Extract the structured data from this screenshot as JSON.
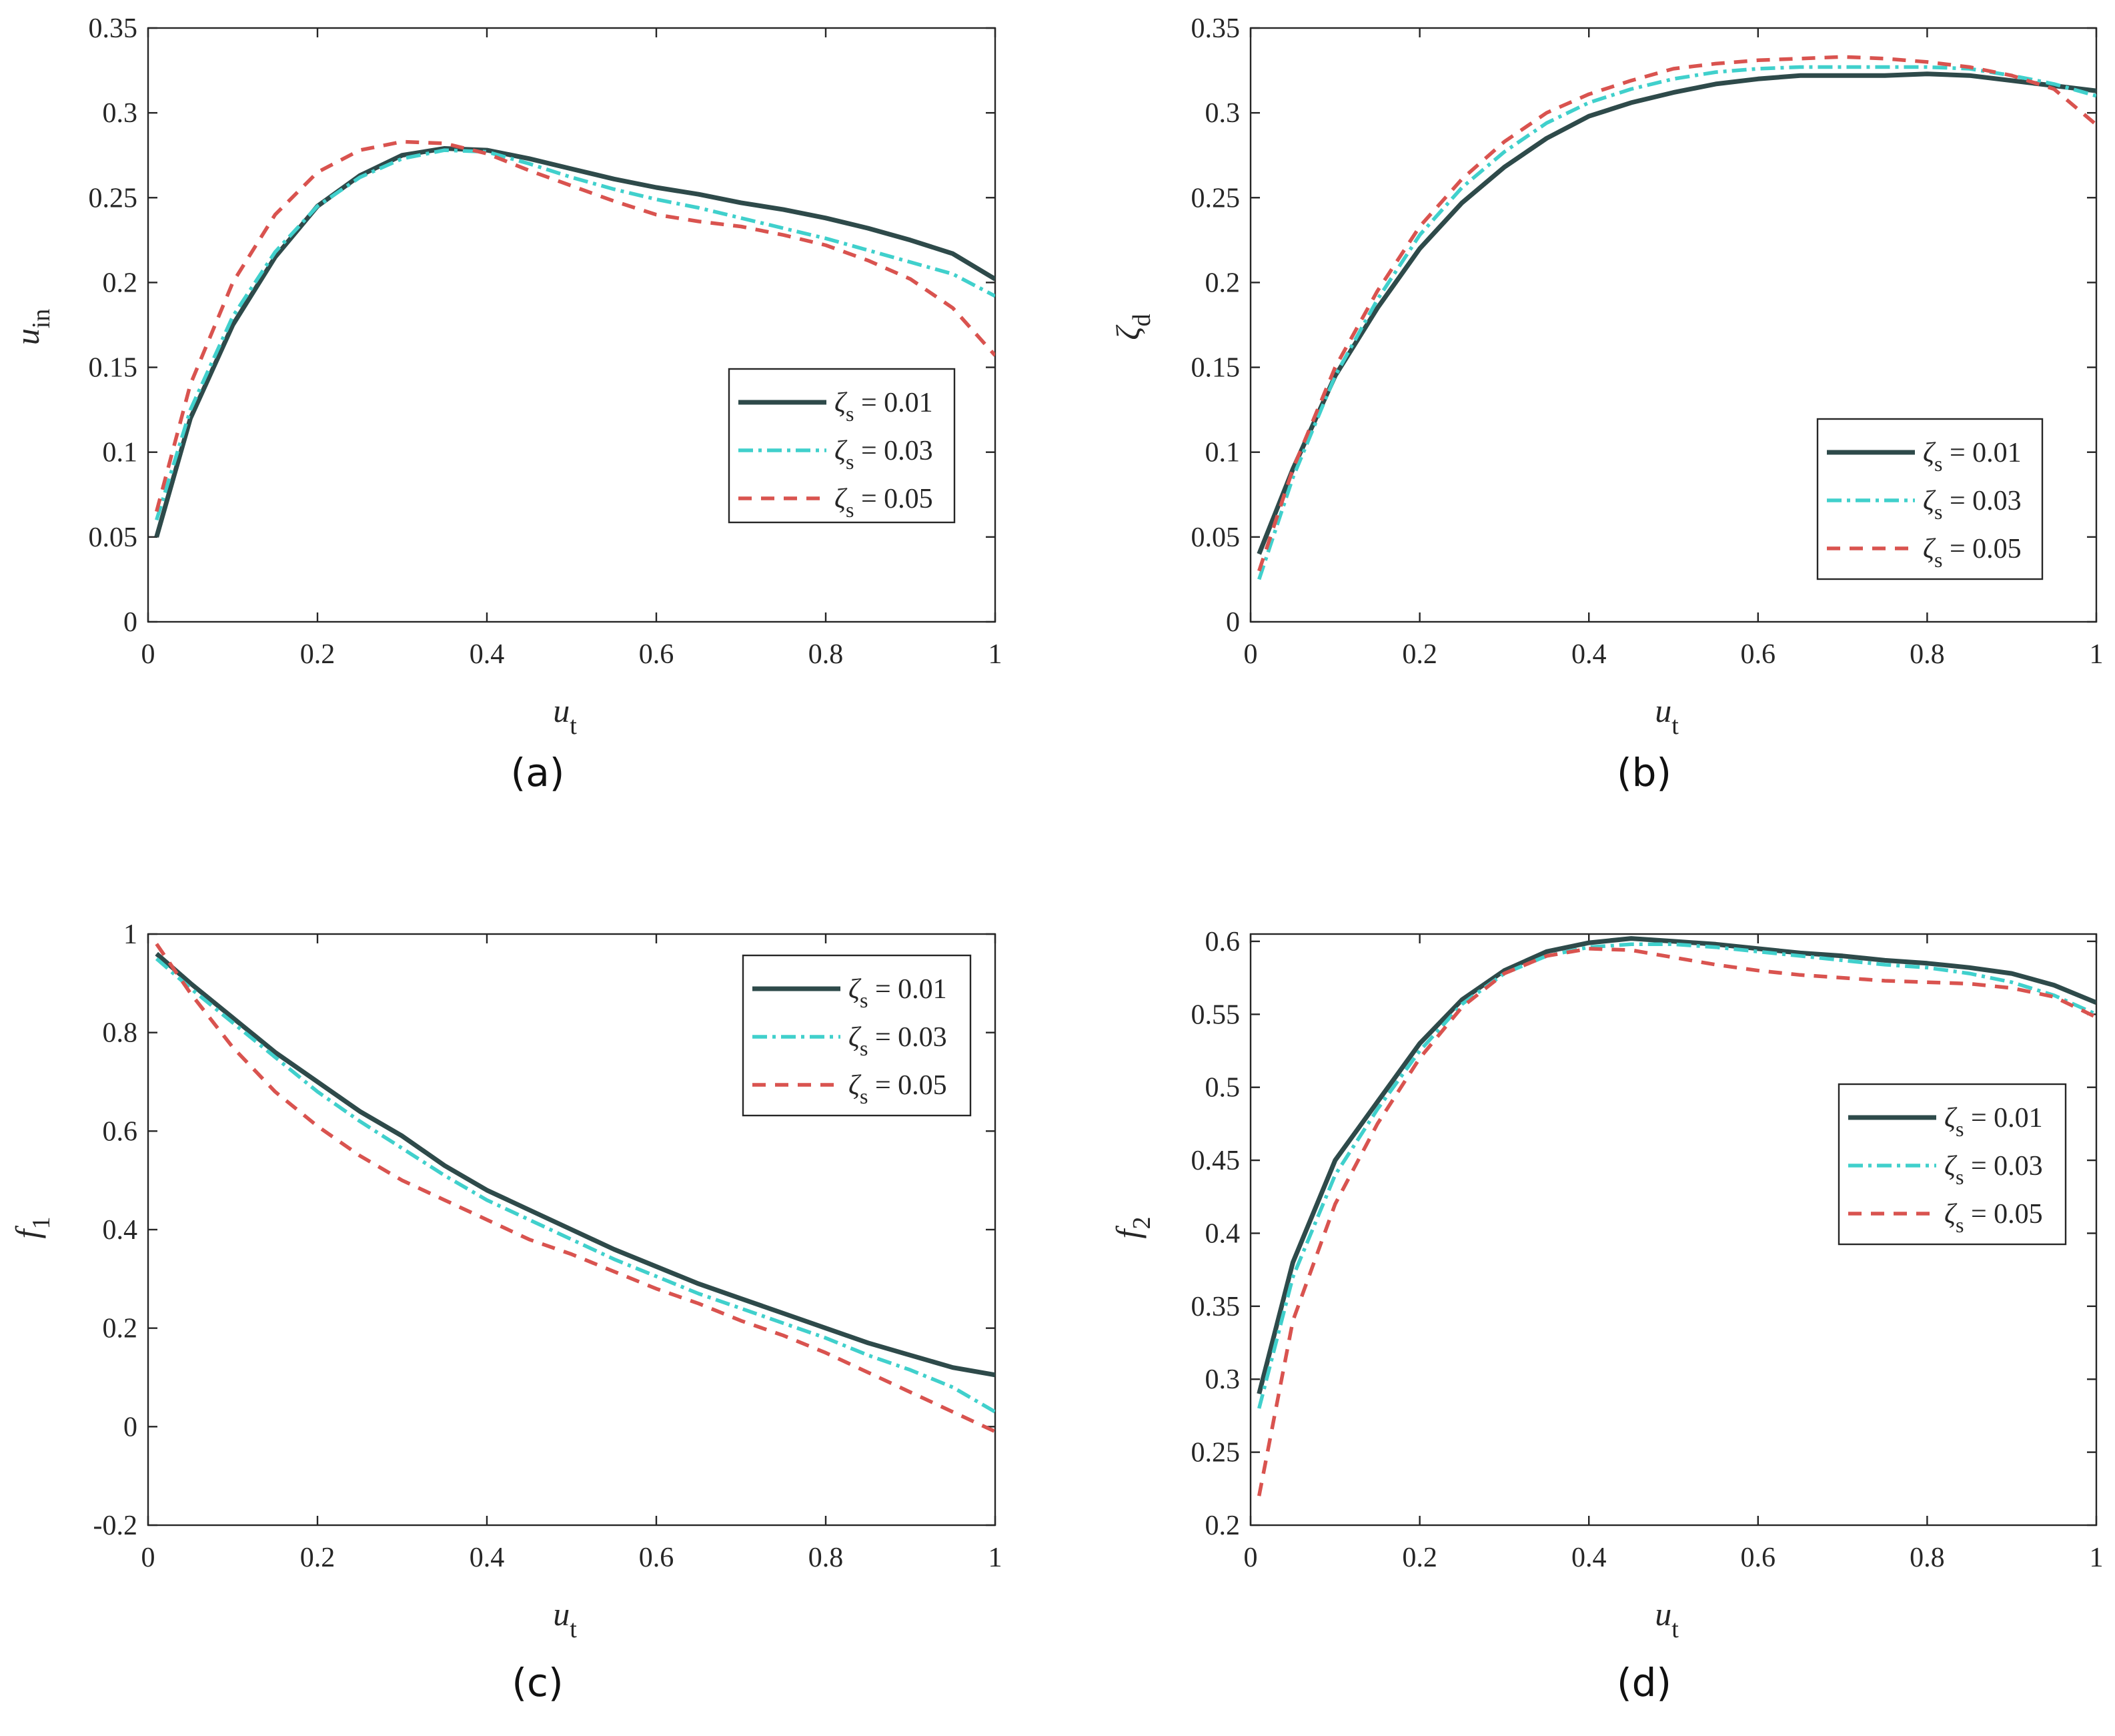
{
  "chart_data": [
    {
      "type": "line",
      "panel_label": "(a)",
      "xlabel": {
        "base": "u",
        "sub": "t"
      },
      "ylabel": {
        "base": "u",
        "sub": "in",
        "sub_italic": true
      },
      "xlim": [
        0,
        1
      ],
      "ylim": [
        0,
        0.35
      ],
      "xticks": [
        "0",
        "0.2",
        "0.4",
        "0.6",
        "0.8",
        "1"
      ],
      "yticks": [
        "0",
        "0.05",
        "0.1",
        "0.15",
        "0.2",
        "0.25",
        "0.3",
        "0.35"
      ],
      "legend_position": "right-middle",
      "legend": [
        {
          "symbol": "ζ",
          "sub": "s",
          "text": " = 0.01"
        },
        {
          "symbol": "ζ",
          "sub": "s",
          "text": " = 0.03"
        },
        {
          "symbol": "ζ",
          "sub": "s",
          "text": " = 0.05"
        }
      ],
      "series": [
        {
          "name": "ζs = 0.01",
          "x": [
            0.01,
            0.05,
            0.1,
            0.15,
            0.2,
            0.25,
            0.3,
            0.35,
            0.4,
            0.45,
            0.5,
            0.55,
            0.6,
            0.65,
            0.7,
            0.75,
            0.8,
            0.85,
            0.9,
            0.95,
            1.0
          ],
          "y": [
            0.05,
            0.12,
            0.175,
            0.215,
            0.245,
            0.263,
            0.275,
            0.279,
            0.278,
            0.273,
            0.267,
            0.261,
            0.256,
            0.252,
            0.247,
            0.243,
            0.238,
            0.232,
            0.225,
            0.217,
            0.202
          ]
        },
        {
          "name": "ζs = 0.03",
          "x": [
            0.01,
            0.05,
            0.1,
            0.15,
            0.2,
            0.25,
            0.3,
            0.35,
            0.4,
            0.45,
            0.5,
            0.55,
            0.6,
            0.65,
            0.7,
            0.75,
            0.8,
            0.85,
            0.9,
            0.95,
            1.0
          ],
          "y": [
            0.06,
            0.125,
            0.18,
            0.218,
            0.245,
            0.262,
            0.273,
            0.278,
            0.277,
            0.27,
            0.262,
            0.255,
            0.249,
            0.244,
            0.238,
            0.232,
            0.226,
            0.219,
            0.212,
            0.205,
            0.192
          ]
        },
        {
          "name": "ζs = 0.05",
          "x": [
            0.01,
            0.05,
            0.1,
            0.15,
            0.2,
            0.25,
            0.3,
            0.35,
            0.4,
            0.45,
            0.5,
            0.55,
            0.6,
            0.65,
            0.7,
            0.75,
            0.8,
            0.85,
            0.9,
            0.95,
            1.0
          ],
          "y": [
            0.065,
            0.14,
            0.2,
            0.24,
            0.265,
            0.278,
            0.283,
            0.282,
            0.276,
            0.266,
            0.257,
            0.248,
            0.24,
            0.236,
            0.233,
            0.228,
            0.222,
            0.213,
            0.202,
            0.185,
            0.157
          ]
        }
      ]
    },
    {
      "type": "line",
      "panel_label": "(b)",
      "xlabel": {
        "base": "u",
        "sub": "t"
      },
      "ylabel": {
        "base": "ζ",
        "sub": "d",
        "sub_italic": false
      },
      "xlim": [
        0,
        1
      ],
      "ylim": [
        0,
        0.35
      ],
      "xticks": [
        "0",
        "0.2",
        "0.4",
        "0.6",
        "0.8",
        "1"
      ],
      "yticks": [
        "0",
        "0.05",
        "0.1",
        "0.15",
        "0.2",
        "0.25",
        "0.3",
        "0.35"
      ],
      "legend_position": "bottom-right",
      "legend": [
        {
          "symbol": "ζ",
          "sub": "s",
          "text": " = 0.01"
        },
        {
          "symbol": "ζ",
          "sub": "s",
          "text": " = 0.03"
        },
        {
          "symbol": "ζ",
          "sub": "s",
          "text": " = 0.05"
        }
      ],
      "series": [
        {
          "name": "ζs = 0.01",
          "x": [
            0.01,
            0.05,
            0.1,
            0.15,
            0.2,
            0.25,
            0.3,
            0.35,
            0.4,
            0.45,
            0.5,
            0.55,
            0.6,
            0.65,
            0.7,
            0.75,
            0.8,
            0.85,
            0.9,
            0.95,
            1.0
          ],
          "y": [
            0.04,
            0.09,
            0.145,
            0.185,
            0.22,
            0.247,
            0.268,
            0.285,
            0.298,
            0.306,
            0.312,
            0.317,
            0.32,
            0.322,
            0.322,
            0.322,
            0.323,
            0.322,
            0.319,
            0.316,
            0.313
          ]
        },
        {
          "name": "ζs = 0.03",
          "x": [
            0.01,
            0.05,
            0.1,
            0.15,
            0.2,
            0.25,
            0.3,
            0.35,
            0.4,
            0.45,
            0.5,
            0.55,
            0.6,
            0.65,
            0.7,
            0.75,
            0.8,
            0.85,
            0.9,
            0.95,
            1.0
          ],
          "y": [
            0.025,
            0.085,
            0.145,
            0.19,
            0.228,
            0.256,
            0.277,
            0.294,
            0.306,
            0.314,
            0.32,
            0.324,
            0.326,
            0.327,
            0.327,
            0.327,
            0.327,
            0.326,
            0.322,
            0.317,
            0.31
          ]
        },
        {
          "name": "ζs = 0.05",
          "x": [
            0.01,
            0.05,
            0.1,
            0.15,
            0.2,
            0.25,
            0.3,
            0.35,
            0.4,
            0.45,
            0.5,
            0.55,
            0.6,
            0.65,
            0.7,
            0.75,
            0.8,
            0.85,
            0.9,
            0.95,
            1.0
          ],
          "y": [
            0.03,
            0.09,
            0.15,
            0.195,
            0.233,
            0.261,
            0.283,
            0.3,
            0.311,
            0.319,
            0.326,
            0.329,
            0.331,
            0.332,
            0.333,
            0.332,
            0.33,
            0.327,
            0.322,
            0.314,
            0.293
          ]
        }
      ]
    },
    {
      "type": "line",
      "panel_label": "(c)",
      "xlabel": {
        "base": "u",
        "sub": "t"
      },
      "ylabel": {
        "base": "f",
        "sub": "1",
        "sub_italic": true
      },
      "xlim": [
        0,
        1
      ],
      "ylim": [
        -0.2,
        1
      ],
      "xticks": [
        "0",
        "0.2",
        "0.4",
        "0.6",
        "0.8",
        "1"
      ],
      "yticks": [
        "-0.2",
        "0",
        "0.2",
        "0.4",
        "0.6",
        "0.8",
        "1"
      ],
      "legend_position": "top-right",
      "legend": [
        {
          "symbol": "ζ",
          "sub": "s",
          "text": " = 0.01"
        },
        {
          "symbol": "ζ",
          "sub": "s",
          "text": " = 0.03"
        },
        {
          "symbol": "ζ",
          "sub": "s",
          "text": " = 0.05"
        }
      ],
      "series": [
        {
          "name": "ζs = 0.01",
          "x": [
            0.01,
            0.05,
            0.1,
            0.15,
            0.2,
            0.25,
            0.3,
            0.35,
            0.4,
            0.45,
            0.5,
            0.55,
            0.6,
            0.65,
            0.7,
            0.75,
            0.8,
            0.85,
            0.9,
            0.95,
            1.0
          ],
          "y": [
            0.96,
            0.9,
            0.83,
            0.76,
            0.7,
            0.64,
            0.59,
            0.53,
            0.48,
            0.44,
            0.4,
            0.36,
            0.325,
            0.29,
            0.26,
            0.23,
            0.2,
            0.17,
            0.145,
            0.12,
            0.105
          ]
        },
        {
          "name": "ζs = 0.03",
          "x": [
            0.01,
            0.05,
            0.1,
            0.15,
            0.2,
            0.25,
            0.3,
            0.35,
            0.4,
            0.45,
            0.5,
            0.55,
            0.6,
            0.65,
            0.7,
            0.75,
            0.8,
            0.85,
            0.9,
            0.95,
            1.0
          ],
          "y": [
            0.95,
            0.89,
            0.82,
            0.75,
            0.68,
            0.62,
            0.565,
            0.51,
            0.46,
            0.42,
            0.38,
            0.34,
            0.305,
            0.27,
            0.24,
            0.21,
            0.18,
            0.145,
            0.115,
            0.08,
            0.03
          ]
        },
        {
          "name": "ζs = 0.05",
          "x": [
            0.01,
            0.05,
            0.1,
            0.15,
            0.2,
            0.25,
            0.3,
            0.35,
            0.4,
            0.45,
            0.5,
            0.55,
            0.6,
            0.65,
            0.7,
            0.75,
            0.8,
            0.85,
            0.9,
            0.95,
            1.0
          ],
          "y": [
            0.98,
            0.88,
            0.77,
            0.68,
            0.61,
            0.55,
            0.5,
            0.46,
            0.42,
            0.38,
            0.35,
            0.315,
            0.28,
            0.25,
            0.215,
            0.185,
            0.15,
            0.11,
            0.07,
            0.03,
            -0.01
          ]
        }
      ]
    },
    {
      "type": "line",
      "panel_label": "(d)",
      "xlabel": {
        "base": "u",
        "sub": "t"
      },
      "ylabel": {
        "base": "f",
        "sub": "2",
        "sub_italic": true
      },
      "xlim": [
        0,
        1
      ],
      "ylim": [
        0.2,
        0.605
      ],
      "xticks": [
        "0",
        "0.2",
        "0.4",
        "0.6",
        "0.8",
        "1"
      ],
      "yticks": [
        "0.2",
        "0.25",
        "0.3",
        "0.35",
        "0.4",
        "0.45",
        "0.5",
        "0.55",
        "0.6"
      ],
      "ytick_values": [
        0.2,
        0.25,
        0.3,
        0.35,
        0.4,
        0.45,
        0.5,
        0.55,
        0.6
      ],
      "legend_position": "right-middle",
      "legend": [
        {
          "symbol": "ζ",
          "sub": "s",
          "text": " = 0.01"
        },
        {
          "symbol": "ζ",
          "sub": "s",
          "text": " = 0.03"
        },
        {
          "symbol": "ζ",
          "sub": "s",
          "text": " = 0.05"
        }
      ],
      "series": [
        {
          "name": "ζs = 0.01",
          "x": [
            0.01,
            0.05,
            0.1,
            0.15,
            0.2,
            0.25,
            0.3,
            0.35,
            0.4,
            0.45,
            0.5,
            0.55,
            0.6,
            0.65,
            0.7,
            0.75,
            0.8,
            0.85,
            0.9,
            0.95,
            1.0
          ],
          "y": [
            0.29,
            0.38,
            0.45,
            0.49,
            0.53,
            0.56,
            0.58,
            0.593,
            0.599,
            0.602,
            0.6,
            0.598,
            0.595,
            0.592,
            0.59,
            0.587,
            0.585,
            0.582,
            0.578,
            0.57,
            0.558
          ]
        },
        {
          "name": "ζs = 0.03",
          "x": [
            0.01,
            0.05,
            0.1,
            0.15,
            0.2,
            0.25,
            0.3,
            0.35,
            0.4,
            0.45,
            0.5,
            0.55,
            0.6,
            0.65,
            0.7,
            0.75,
            0.8,
            0.85,
            0.9,
            0.95,
            1.0
          ],
          "y": [
            0.28,
            0.37,
            0.44,
            0.485,
            0.525,
            0.557,
            0.578,
            0.59,
            0.596,
            0.598,
            0.598,
            0.596,
            0.593,
            0.59,
            0.587,
            0.584,
            0.582,
            0.578,
            0.572,
            0.563,
            0.55
          ]
        },
        {
          "name": "ζs = 0.05",
          "x": [
            0.01,
            0.05,
            0.1,
            0.15,
            0.2,
            0.25,
            0.3,
            0.35,
            0.4,
            0.45,
            0.5,
            0.55,
            0.6,
            0.65,
            0.7,
            0.75,
            0.8,
            0.85,
            0.9,
            0.95,
            1.0
          ],
          "y": [
            0.22,
            0.34,
            0.42,
            0.475,
            0.52,
            0.555,
            0.578,
            0.59,
            0.595,
            0.594,
            0.589,
            0.584,
            0.58,
            0.577,
            0.575,
            0.573,
            0.572,
            0.571,
            0.568,
            0.562,
            0.548
          ]
        }
      ]
    }
  ],
  "series_colors": [
    "#2e4a4a",
    "#40d0cc",
    "#d9534f"
  ],
  "series_styles": [
    "solid",
    "dashdot",
    "dashed"
  ]
}
